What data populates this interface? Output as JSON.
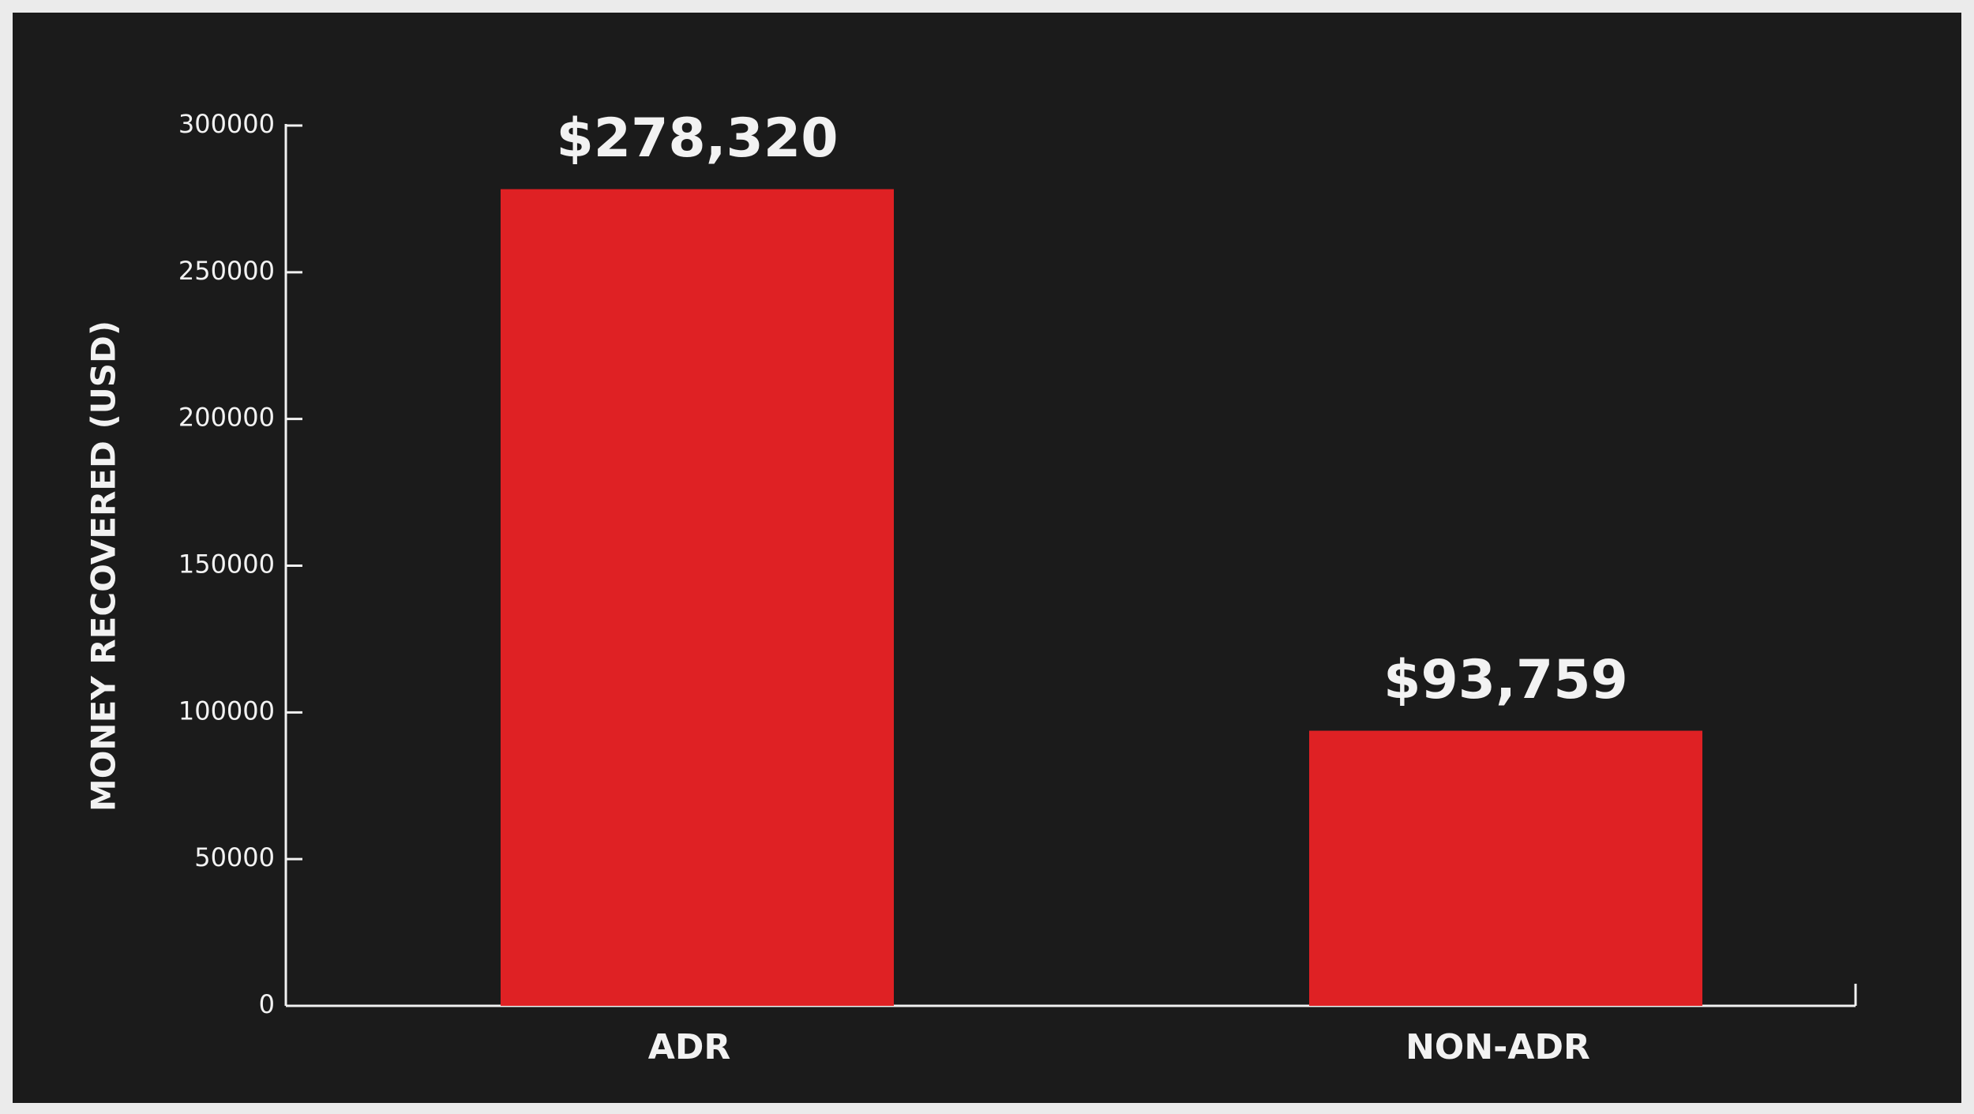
{
  "chart_data": {
    "type": "bar",
    "y_label": "MONEY RECOVERED (USD)",
    "categories": [
      "ADR",
      "NON-ADR"
    ],
    "values": [
      278320,
      93759
    ],
    "value_labels": [
      "$278,320",
      "$93,759"
    ],
    "color": "#df2124",
    "ylim": [
      0,
      300000
    ],
    "yticks": [
      0,
      50000,
      100000,
      150000,
      200000,
      250000,
      300000
    ]
  }
}
